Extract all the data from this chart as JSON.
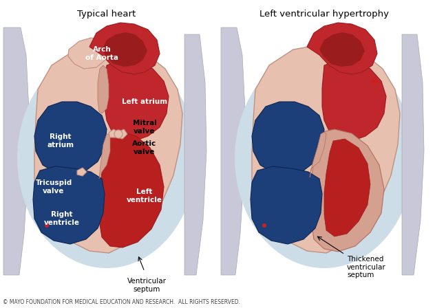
{
  "title_left": "Typical heart",
  "title_right": "Left ventricular hypertrophy",
  "footer": "© MAYO FOUNDATION FOR MEDICAL EDUCATION AND RESEARCH.  ALL RIGHTS RESERVED.",
  "labels_left": {
    "arch_aorta": "Arch\nof Aorta",
    "left_atrium": "Left atrium",
    "mitral_valve": "Mitral\nvalve",
    "aortic_valve": "Aortic\nvalve",
    "left_ventricle": "Left\nventricle",
    "right_atrium": "Right\natrium",
    "tricuspid_valve": "Tricuspid\nvalve",
    "right_ventricle": "Right\nventricle",
    "ventricular_septum": "Ventricular\nseptum"
  },
  "labels_right": {
    "thickened_septum": "Thickened\nventricular\nseptum"
  },
  "bg_color": "#ffffff",
  "title_fontsize": 9.5,
  "label_fontsize": 7.5,
  "label_color_white": "#ffffff",
  "label_color_dark": "#000000",
  "footer_fontsize": 5.5,
  "colors": {
    "red_heart": "#c0272d",
    "red_dark": "#9b1c1c",
    "red_lv": "#b82020",
    "blue_chamber": "#1c3f7a",
    "blue_dark": "#0e2550",
    "pink_wall": "#d4a090",
    "pink_light": "#e8c0b0",
    "skin_outer": "#deb8a8",
    "bg_blue_light": "#b8d4e8",
    "bg_blue_mid": "#9abfd8",
    "spine_gray": "#c8c8d8",
    "aorta_tube": "#b82828"
  }
}
